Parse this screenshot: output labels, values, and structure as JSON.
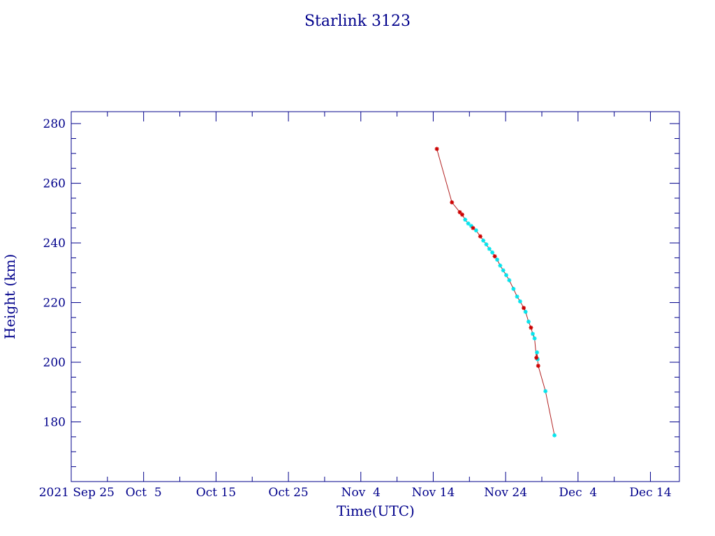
{
  "chart_data": {
    "type": "scatter",
    "title": "Starlink 3123",
    "xlabel": "Time(UTC)",
    "ylabel": "Height (km)",
    "x_axis_type": "date",
    "xlim": [
      "2021-09-25",
      "2021-12-18"
    ],
    "ylim": [
      160,
      284
    ],
    "x_ticks": [
      {
        "date": "2021-09-25",
        "label": "2021 Sep 25"
      },
      {
        "date": "2021-10-05",
        "label": "Oct  5"
      },
      {
        "date": "2021-10-15",
        "label": "Oct 15"
      },
      {
        "date": "2021-10-25",
        "label": "Oct 25"
      },
      {
        "date": "2021-11-04",
        "label": "Nov  4"
      },
      {
        "date": "2021-11-14",
        "label": "Nov 14"
      },
      {
        "date": "2021-11-24",
        "label": "Nov 24"
      },
      {
        "date": "2021-12-04",
        "label": "Dec  4"
      },
      {
        "date": "2021-12-14",
        "label": "Dec 14"
      }
    ],
    "y_ticks": [
      180,
      200,
      220,
      240,
      260,
      280
    ],
    "grid": false,
    "colors": {
      "axis": "#00008b",
      "line": "#b22222",
      "series_a": "#cc0000",
      "series_b": "#00e5ee"
    },
    "series": [
      {
        "marker": "star",
        "color": "#cc0000",
        "points": [
          {
            "date": "2021-11-14 12:00",
            "y": 271.5
          },
          {
            "date": "2021-11-16 14:00",
            "y": 253.6
          },
          {
            "date": "2021-11-17 16:00",
            "y": 250.3
          },
          {
            "date": "2021-11-18 00:00",
            "y": 249.5
          },
          {
            "date": "2021-11-19 12:00",
            "y": 245.0
          },
          {
            "date": "2021-11-20 12:00",
            "y": 242.2
          },
          {
            "date": "2021-11-22 12:00",
            "y": 235.5
          },
          {
            "date": "2021-11-26 12:00",
            "y": 218.2
          },
          {
            "date": "2021-11-27 12:00",
            "y": 211.6
          },
          {
            "date": "2021-11-28 06:00",
            "y": 201.5
          },
          {
            "date": "2021-11-28 12:00",
            "y": 198.8
          }
        ]
      },
      {
        "marker": "star",
        "color": "#00e5ee",
        "points": [
          {
            "date": "2021-11-18 10:00",
            "y": 247.8
          },
          {
            "date": "2021-11-18 20:00",
            "y": 246.5
          },
          {
            "date": "2021-11-19 06:00",
            "y": 245.7
          },
          {
            "date": "2021-11-19 22:00",
            "y": 244.2
          },
          {
            "date": "2021-11-20 22:00",
            "y": 240.8
          },
          {
            "date": "2021-11-21 08:00",
            "y": 239.5
          },
          {
            "date": "2021-11-21 18:00",
            "y": 238.0
          },
          {
            "date": "2021-11-22 04:00",
            "y": 236.8
          },
          {
            "date": "2021-11-22 20:00",
            "y": 234.4
          },
          {
            "date": "2021-11-23 06:00",
            "y": 232.4
          },
          {
            "date": "2021-11-23 16:00",
            "y": 230.8
          },
          {
            "date": "2021-11-24 02:00",
            "y": 229.2
          },
          {
            "date": "2021-11-24 12:00",
            "y": 227.5
          },
          {
            "date": "2021-11-25 02:00",
            "y": 224.6
          },
          {
            "date": "2021-11-25 14:00",
            "y": 222.0
          },
          {
            "date": "2021-11-26 00:00",
            "y": 220.4
          },
          {
            "date": "2021-11-26 18:00",
            "y": 216.9
          },
          {
            "date": "2021-11-27 04:00",
            "y": 213.6
          },
          {
            "date": "2021-11-27 18:00",
            "y": 209.5
          },
          {
            "date": "2021-11-28 00:00",
            "y": 208.0
          },
          {
            "date": "2021-11-28 08:00",
            "y": 203.3
          },
          {
            "date": "2021-11-28 10:00",
            "y": 201.0
          },
          {
            "date": "2021-11-29 12:00",
            "y": 190.3
          },
          {
            "date": "2021-11-30 18:00",
            "y": 175.5
          }
        ]
      }
    ]
  }
}
